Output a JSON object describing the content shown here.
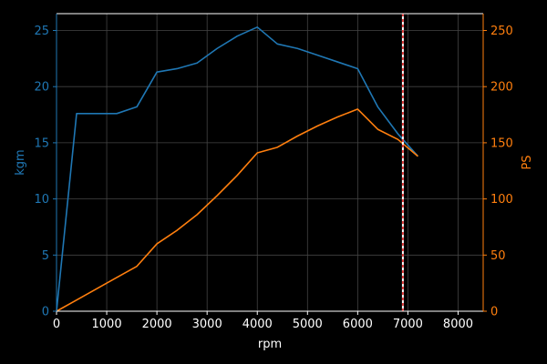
{
  "chart_data": {
    "type": "line",
    "xlabel": "rpm",
    "ylabel_left": "kgm",
    "ylabel_right": "PS",
    "xlim": [
      0,
      8500
    ],
    "ylim_left": [
      0,
      26.5
    ],
    "ylim_right": [
      0,
      265
    ],
    "x_ticks": [
      "0",
      "1000",
      "2000",
      "3000",
      "4000",
      "5000",
      "6000",
      "7000",
      "8000"
    ],
    "y_left_ticks": [
      "0",
      "5",
      "10",
      "15",
      "20",
      "25"
    ],
    "y_right_ticks": [
      "0",
      "50",
      "100",
      "150",
      "200",
      "250"
    ],
    "grid": true,
    "vline_x": 6900,
    "colors": {
      "background": "#000000",
      "torque": "#1f77b4",
      "power": "#ff7f0e",
      "left_axis": "#1f77b4",
      "right_axis": "#ff7f0e",
      "text": "#ffffff",
      "grid": "#444444",
      "vline_outer": "#ffffff",
      "vline_inner": "#e00000"
    },
    "series": [
      {
        "axis": "left",
        "x": [
          0,
          400,
          800,
          1200,
          1600,
          2000,
          2400,
          2800,
          3200,
          3600,
          4000,
          4400,
          4800,
          5200,
          5600,
          6000,
          6400,
          6800,
          7200
        ],
        "y": [
          0,
          17.6,
          17.6,
          17.6,
          18.2,
          21.3,
          21.6,
          22.1,
          23.4,
          24.5,
          25.3,
          23.8,
          23.4,
          22.8,
          22.2,
          21.6,
          18.2,
          15.8,
          13.8
        ]
      },
      {
        "axis": "right",
        "x": [
          0,
          400,
          800,
          1200,
          1600,
          2000,
          2400,
          2800,
          3200,
          3600,
          4000,
          4400,
          4800,
          5200,
          5600,
          6000,
          6400,
          6800,
          7200
        ],
        "y": [
          0,
          10,
          20,
          30,
          40,
          60,
          72,
          86,
          103,
          121,
          141,
          146,
          156,
          165,
          173,
          180,
          162,
          153,
          138
        ]
      }
    ]
  }
}
